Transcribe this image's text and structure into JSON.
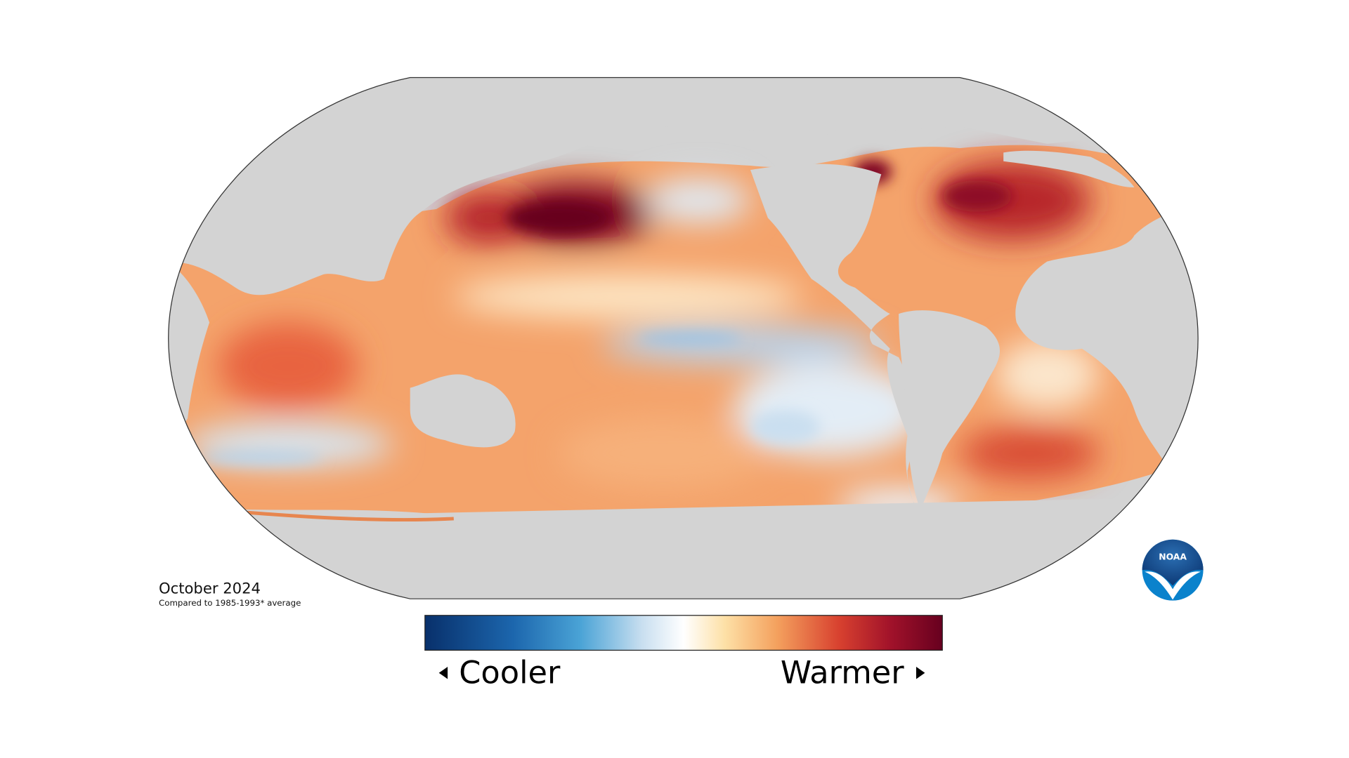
{
  "map": {
    "date": "October 2024",
    "baseline": "Compared to 1985-1993* average"
  },
  "legend": {
    "low": "Cooler",
    "high": "Warmer"
  },
  "logo": "NOAA"
}
